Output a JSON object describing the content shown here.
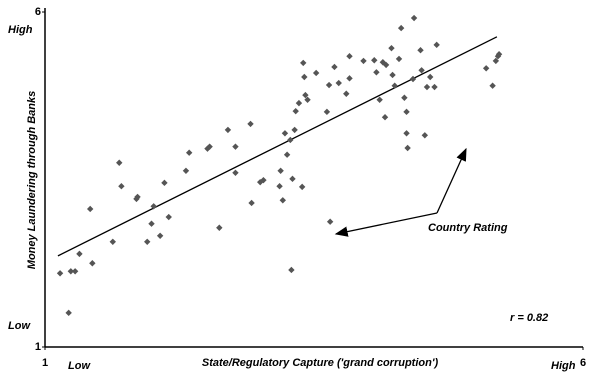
{
  "chart_data": {
    "type": "scatter",
    "x_label": "State/Regulatory Capture ('grand corruption')",
    "y_label": "Money Laundering through Banks",
    "x_low_label": "Low",
    "x_high_label": "High",
    "y_low_label": "Low",
    "y_high_label": "High",
    "annotation": "Country Rating",
    "r_label": "r = 0.82",
    "xlim": [
      1,
      6
    ],
    "ylim": [
      1,
      6
    ],
    "xticks": [
      1,
      6
    ],
    "yticks": [
      1,
      6
    ],
    "color": "#555555",
    "x": [
      1.14,
      1.22,
      1.24,
      1.28,
      1.32,
      1.42,
      1.44,
      1.63,
      1.69,
      1.71,
      1.85,
      1.86,
      1.95,
      1.99,
      2.01,
      2.07,
      2.11,
      2.15,
      2.31,
      2.34,
      2.51,
      2.53,
      2.62,
      2.7,
      2.77,
      2.77,
      2.91,
      2.92,
      3.0,
      3.03,
      3.18,
      3.19,
      3.21,
      3.23,
      3.25,
      3.28,
      3.29,
      3.3,
      3.32,
      3.33,
      3.36,
      3.39,
      3.4,
      3.41,
      3.42,
      3.44,
      3.52,
      3.62,
      3.65,
      3.64,
      3.69,
      3.73,
      3.8,
      3.83,
      3.83,
      3.96,
      4.06,
      4.08,
      4.14,
      4.11,
      4.16,
      4.17,
      4.22,
      4.23,
      4.25,
      4.29,
      4.31,
      4.34,
      4.36,
      4.36,
      4.37,
      4.43,
      4.42,
      4.49,
      4.5,
      4.53,
      4.55,
      4.58,
      4.62,
      4.64,
      5.1,
      5.16,
      5.19,
      5.21,
      5.22
    ],
    "y": [
      2.1,
      1.51,
      2.13,
      2.13,
      2.39,
      3.06,
      2.25,
      2.57,
      3.75,
      3.4,
      3.21,
      3.24,
      2.57,
      2.84,
      3.1,
      2.66,
      3.45,
      2.94,
      3.63,
      3.9,
      3.96,
      3.99,
      2.78,
      4.24,
      3.99,
      3.6,
      4.33,
      3.15,
      3.46,
      3.49,
      3.4,
      3.63,
      3.19,
      4.19,
      3.87,
      4.09,
      2.15,
      3.51,
      4.24,
      4.52,
      4.64,
      3.39,
      5.24,
      5.03,
      4.76,
      4.69,
      5.09,
      4.51,
      2.87,
      4.91,
      5.18,
      4.94,
      4.78,
      5.34,
      5.01,
      5.27,
      5.28,
      5.1,
      5.25,
      4.69,
      4.43,
      5.21,
      5.46,
      5.06,
      4.9,
      5.3,
      5.76,
      4.72,
      4.51,
      4.19,
      3.97,
      5.91,
      5.0,
      5.43,
      5.13,
      4.16,
      4.88,
      5.03,
      4.88,
      5.51,
      5.16,
      4.9,
      5.27,
      5.34,
      5.37
    ],
    "trendline": {
      "x": [
        1.12,
        5.2
      ],
      "y": [
        2.36,
        5.63
      ]
    }
  }
}
